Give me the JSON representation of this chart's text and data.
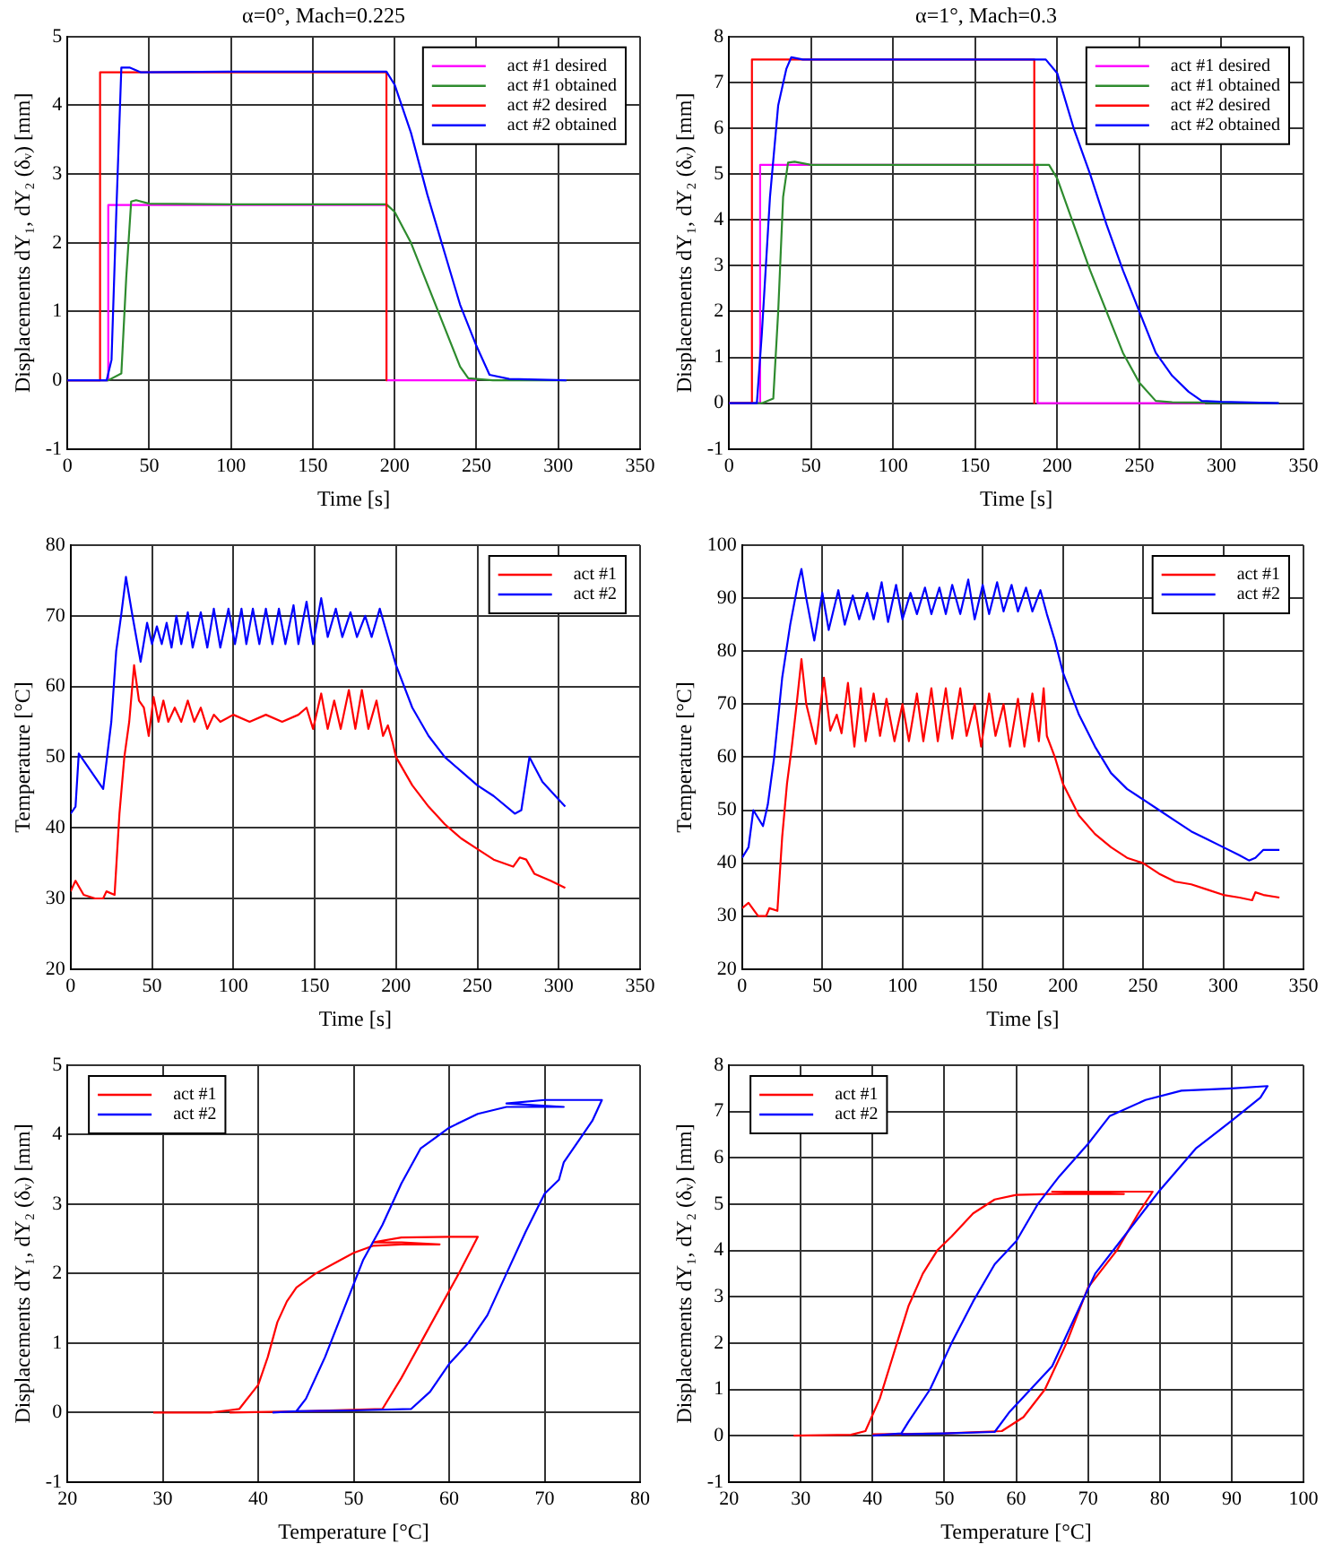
{
  "chart_data": [
    {
      "type": "line",
      "title": "α=0°, Mach=0.225",
      "xlabel": "Time [s]",
      "ylabel": "Displacements dY₁, dY₂ (δᵥ) [mm]",
      "xlim": [
        0,
        350
      ],
      "xticks": [
        0,
        50,
        100,
        150,
        200,
        250,
        300,
        350
      ],
      "ylim": [
        -1,
        5
      ],
      "yticks": [
        -1,
        0,
        1,
        2,
        3,
        4,
        5
      ],
      "grid": true,
      "legend": "top right",
      "marker": "none",
      "series": [
        {
          "name": "act #1 desired",
          "color": "#ff00ff",
          "x": [
            0,
            25,
            25,
            195,
            195,
            250
          ],
          "values": [
            0,
            0,
            2.55,
            2.55,
            0,
            0
          ]
        },
        {
          "name": "act #1 obtained",
          "color": "#2e8b2e",
          "x": [
            0,
            25,
            33,
            36,
            39,
            42,
            50,
            100,
            150,
            195,
            200,
            210,
            220,
            230,
            240,
            245,
            260,
            305
          ],
          "values": [
            0,
            0,
            0.1,
            1.5,
            2.6,
            2.62,
            2.57,
            2.56,
            2.56,
            2.56,
            2.45,
            2.0,
            1.4,
            0.8,
            0.2,
            0.03,
            0,
            0
          ]
        },
        {
          "name": "act #2 desired",
          "color": "#ff0000",
          "x": [
            0,
            20,
            20,
            195,
            195
          ],
          "values": [
            0,
            0,
            4.48,
            4.48,
            0
          ]
        },
        {
          "name": "act #2 obtained",
          "color": "#0000ff",
          "x": [
            0,
            24,
            27,
            30,
            33,
            38,
            45,
            100,
            150,
            195,
            200,
            210,
            220,
            230,
            240,
            250,
            258,
            270,
            305
          ],
          "values": [
            0,
            0,
            0.3,
            2.5,
            4.55,
            4.55,
            4.48,
            4.49,
            4.49,
            4.49,
            4.3,
            3.6,
            2.7,
            1.9,
            1.1,
            0.5,
            0.08,
            0.02,
            0
          ]
        }
      ]
    },
    {
      "type": "line",
      "title": "α=1°, Mach=0.3",
      "xlabel": "Time [s]",
      "ylabel": "Displacements dY₁, dY₂ (δᵥ) [mm]",
      "xlim": [
        0,
        350
      ],
      "xticks": [
        0,
        50,
        100,
        150,
        200,
        250,
        300,
        350
      ],
      "ylim": [
        -1,
        8
      ],
      "yticks": [
        -1,
        0,
        1,
        2,
        3,
        4,
        5,
        6,
        7,
        8
      ],
      "grid": true,
      "legend": "top right",
      "marker": "none",
      "series": [
        {
          "name": "act #1 desired",
          "color": "#ff00ff",
          "x": [
            0,
            19,
            19,
            188,
            188,
            290
          ],
          "values": [
            0,
            0,
            5.2,
            5.2,
            0,
            0
          ]
        },
        {
          "name": "act #1 obtained",
          "color": "#2e8b2e",
          "x": [
            0,
            20,
            27,
            30,
            33,
            36,
            40,
            50,
            100,
            150,
            195,
            200,
            210,
            220,
            230,
            240,
            250,
            260,
            270,
            335
          ],
          "values": [
            0,
            0,
            0.1,
            2,
            4.5,
            5.25,
            5.27,
            5.2,
            5.2,
            5.2,
            5.2,
            4.9,
            3.9,
            2.9,
            2.0,
            1.1,
            0.45,
            0.05,
            0.02,
            0
          ]
        },
        {
          "name": "act #2 desired",
          "color": "#ff0000",
          "x": [
            0,
            14,
            14,
            186,
            186
          ],
          "values": [
            0,
            0,
            7.5,
            7.5,
            0
          ]
        },
        {
          "name": "act #2 obtained",
          "color": "#0000ff",
          "x": [
            0,
            17,
            20,
            25,
            30,
            35,
            38,
            45,
            100,
            150,
            193,
            200,
            210,
            220,
            230,
            240,
            250,
            260,
            270,
            280,
            288,
            300,
            335
          ],
          "values": [
            0,
            0,
            1.5,
            4.5,
            6.5,
            7.3,
            7.55,
            7.5,
            7.5,
            7.5,
            7.5,
            7.2,
            6.0,
            5.0,
            3.9,
            2.9,
            2.0,
            1.1,
            0.6,
            0.25,
            0.05,
            0.03,
            0
          ]
        }
      ]
    },
    {
      "type": "line",
      "xlabel": "Time [s]",
      "ylabel": "Temperature [°C]",
      "xlim": [
        0,
        350
      ],
      "xticks": [
        0,
        50,
        100,
        150,
        200,
        250,
        300,
        350
      ],
      "ylim": [
        20,
        80
      ],
      "yticks": [
        20,
        30,
        40,
        50,
        60,
        70,
        80
      ],
      "grid": true,
      "legend": "top right",
      "marker": "none",
      "series": [
        {
          "name": "act #1",
          "color": "#ff0000",
          "x": [
            0,
            3,
            8,
            15,
            20,
            22,
            27,
            30,
            33,
            36,
            39,
            42,
            45,
            48,
            51,
            54,
            57,
            60,
            64,
            68,
            72,
            76,
            80,
            84,
            88,
            92,
            100,
            110,
            120,
            130,
            140,
            145,
            149,
            154,
            158,
            162,
            166,
            171,
            175,
            179,
            183,
            188,
            192,
            195,
            198,
            200,
            210,
            220,
            230,
            240,
            250,
            260,
            272,
            276,
            280,
            285,
            295,
            304
          ],
          "values": [
            31,
            32.5,
            30.5,
            30,
            30,
            31,
            30.5,
            42,
            50,
            55,
            63,
            58,
            57,
            53,
            58.5,
            55,
            58,
            55,
            57,
            55,
            58,
            55,
            57,
            54,
            56,
            55,
            56,
            55,
            56,
            55,
            56,
            57,
            54,
            59,
            54,
            58,
            54,
            59.5,
            54,
            59.5,
            54,
            58,
            53,
            54.5,
            52,
            50,
            46,
            43,
            40.5,
            38.5,
            37,
            35.5,
            34.5,
            35.8,
            35.5,
            33.5,
            32.5,
            31.5
          ]
        },
        {
          "name": "act #2",
          "color": "#0000ff",
          "x": [
            0,
            3,
            5,
            20,
            25,
            28,
            31,
            34,
            38,
            43,
            47,
            50,
            53,
            56,
            59,
            62,
            65,
            68,
            72,
            75,
            80,
            84,
            88,
            92,
            97,
            101,
            105,
            108,
            112,
            116,
            120,
            124,
            128,
            132,
            137,
            140,
            145,
            149,
            154,
            158,
            163,
            167,
            172,
            176,
            181,
            185,
            190,
            195,
            200,
            210,
            220,
            230,
            240,
            250,
            260,
            273,
            277,
            282,
            290,
            300,
            304
          ],
          "values": [
            42,
            43,
            50.5,
            45.5,
            55,
            65,
            70,
            75.5,
            70,
            63.5,
            69,
            66,
            68.5,
            66,
            69,
            65.5,
            70,
            66,
            70.5,
            65.5,
            70.5,
            65.5,
            71,
            65.5,
            71,
            66,
            71,
            66,
            71,
            66,
            71,
            66,
            71,
            66,
            71.5,
            66,
            72,
            66,
            72.5,
            67,
            71,
            67,
            70.5,
            67,
            70,
            67,
            71,
            67,
            63,
            57,
            53,
            50,
            48,
            46,
            44.5,
            42,
            42.5,
            50,
            46.5,
            44,
            43
          ]
        }
      ]
    },
    {
      "type": "line",
      "xlabel": "Time [s]",
      "ylabel": "Temperature [°C]",
      "xlim": [
        0,
        350
      ],
      "xticks": [
        0,
        50,
        100,
        150,
        200,
        250,
        300,
        350
      ],
      "ylim": [
        20,
        100
      ],
      "yticks": [
        20,
        30,
        40,
        50,
        60,
        70,
        80,
        90,
        100
      ],
      "grid": true,
      "legend": "top right",
      "marker": "none",
      "series": [
        {
          "name": "act #1",
          "color": "#ff0000",
          "x": [
            0,
            4,
            10,
            15,
            17,
            22,
            25,
            28,
            31,
            34,
            37,
            40,
            46,
            51,
            55,
            59,
            62,
            66,
            70,
            74,
            77,
            82,
            86,
            90,
            95,
            100,
            104,
            109,
            113,
            118,
            122,
            127,
            131,
            136,
            140,
            145,
            149,
            154,
            158,
            163,
            167,
            172,
            176,
            181,
            185,
            188,
            190,
            195,
            200,
            210,
            220,
            230,
            240,
            250,
            260,
            270,
            280,
            290,
            300,
            310,
            318,
            320,
            325,
            335
          ],
          "values": [
            31.5,
            32.5,
            30,
            30,
            31.5,
            31,
            45,
            55,
            62,
            70,
            78.5,
            70,
            62.5,
            75,
            65,
            68,
            64.5,
            74,
            62,
            73,
            63,
            72,
            64,
            71,
            63,
            70,
            63,
            72,
            63,
            73,
            63,
            73,
            63.5,
            73,
            64,
            70,
            62,
            72,
            64,
            70,
            62,
            71,
            62,
            72,
            63,
            73,
            64,
            60,
            55,
            49,
            45.5,
            43,
            41,
            40,
            38,
            36.5,
            36,
            35,
            34,
            33.5,
            33,
            34.5,
            34,
            33.5
          ]
        },
        {
          "name": "act #2",
          "color": "#0000ff",
          "x": [
            0,
            4,
            7,
            13,
            16,
            20,
            25,
            30,
            35,
            37,
            40,
            45,
            50,
            54,
            60,
            64,
            69,
            73,
            78,
            82,
            87,
            91,
            96,
            100,
            105,
            109,
            114,
            118,
            123,
            127,
            131,
            136,
            141,
            145,
            150,
            154,
            159,
            163,
            168,
            172,
            177,
            181,
            186,
            190,
            195,
            200,
            210,
            220,
            230,
            240,
            250,
            260,
            270,
            280,
            290,
            300,
            310,
            316,
            320,
            325,
            335
          ],
          "values": [
            41,
            43,
            50,
            47,
            51,
            60,
            75,
            85,
            93,
            95.5,
            90,
            82,
            91,
            84,
            91.5,
            85,
            90.5,
            86,
            91,
            86,
            93,
            85.5,
            92.5,
            86,
            91,
            87,
            92,
            87,
            92,
            87,
            92.5,
            87,
            93.5,
            86,
            92.5,
            87,
            93,
            87.5,
            92.5,
            87.5,
            92,
            87.5,
            91.5,
            87,
            82,
            76,
            68,
            62,
            57,
            54,
            52,
            50,
            48,
            46,
            44.5,
            43,
            41.5,
            40.5,
            41,
            42.5,
            42.5
          ]
        }
      ]
    },
    {
      "type": "line",
      "xlabel": "Temperature [°C]",
      "ylabel": "Displacements dY₁, dY₂ (δᵥ) [mm]",
      "xlim": [
        20,
        80
      ],
      "xticks": [
        20,
        30,
        40,
        50,
        60,
        70,
        80
      ],
      "ylim": [
        -1,
        5
      ],
      "yticks": [
        -1,
        0,
        1,
        2,
        3,
        4,
        5
      ],
      "grid": true,
      "legend": "top left",
      "marker": "none",
      "series": [
        {
          "name": "act #1",
          "color": "#ff0000",
          "x": [
            29,
            35,
            38,
            40,
            41,
            42,
            43,
            44,
            46,
            48,
            50,
            52,
            55,
            59,
            55,
            52,
            55,
            60,
            63,
            61,
            59,
            57,
            55,
            53,
            45,
            37
          ],
          "values": [
            0,
            0,
            0.05,
            0.4,
            0.8,
            1.3,
            1.6,
            1.8,
            2.0,
            2.15,
            2.3,
            2.4,
            2.42,
            2.42,
            2.45,
            2.45,
            2.52,
            2.53,
            2.53,
            2.0,
            1.5,
            1.0,
            0.5,
            0.05,
            0.02,
            0
          ]
        },
        {
          "name": "act #2",
          "color": "#0000ff",
          "x": [
            41.5,
            44,
            45,
            47,
            49,
            51,
            53,
            55,
            57,
            60,
            63,
            66,
            72,
            66,
            70,
            76,
            75,
            72,
            71.5,
            70,
            68,
            66,
            64,
            62,
            60,
            58,
            56,
            50,
            44
          ],
          "values": [
            0,
            0.02,
            0.2,
            0.8,
            1.5,
            2.2,
            2.7,
            3.3,
            3.8,
            4.1,
            4.3,
            4.4,
            4.4,
            4.45,
            4.5,
            4.5,
            4.2,
            3.6,
            3.35,
            3.15,
            2.6,
            2.0,
            1.4,
            1.0,
            0.7,
            0.3,
            0.05,
            0.03,
            0.02
          ]
        }
      ]
    },
    {
      "type": "line",
      "xlabel": "Temperature [°C]",
      "ylabel": "Displacements dY₁, dY₂ (δᵥ) [mm]",
      "xlim": [
        20,
        100
      ],
      "xticks": [
        20,
        30,
        40,
        50,
        60,
        70,
        80,
        90,
        100
      ],
      "ylim": [
        -1,
        8
      ],
      "yticks": [
        -1,
        0,
        1,
        2,
        3,
        4,
        5,
        6,
        7,
        8
      ],
      "grid": true,
      "legend": "top left",
      "marker": "none",
      "series": [
        {
          "name": "act #1",
          "color": "#ff0000",
          "x": [
            29,
            37,
            39,
            41,
            43,
            45,
            47,
            49,
            51,
            54,
            57,
            60,
            65,
            75,
            65,
            79,
            77,
            74,
            70,
            67,
            64,
            61,
            58,
            50,
            40
          ],
          "values": [
            0,
            0.02,
            0.1,
            0.8,
            1.8,
            2.8,
            3.5,
            4.0,
            4.3,
            4.8,
            5.1,
            5.2,
            5.22,
            5.22,
            5.27,
            5.27,
            4.8,
            4.0,
            3.2,
            2.0,
            1.0,
            0.4,
            0.1,
            0.05,
            0.03
          ]
        },
        {
          "name": "act #2",
          "color": "#0000ff",
          "x": [
            40,
            44,
            45,
            48,
            51,
            54,
            57,
            60,
            63,
            66,
            70,
            73,
            78,
            83,
            90,
            95,
            94,
            90,
            85,
            80,
            76,
            71,
            68,
            65,
            62,
            59,
            57,
            50,
            44
          ],
          "values": [
            0,
            0.05,
            0.3,
            1.0,
            2.0,
            2.9,
            3.7,
            4.2,
            5.0,
            5.6,
            6.3,
            6.9,
            7.25,
            7.45,
            7.5,
            7.55,
            7.3,
            6.8,
            6.2,
            5.3,
            4.5,
            3.5,
            2.5,
            1.5,
            1.0,
            0.5,
            0.08,
            0.05,
            0.03
          ]
        }
      ]
    }
  ]
}
